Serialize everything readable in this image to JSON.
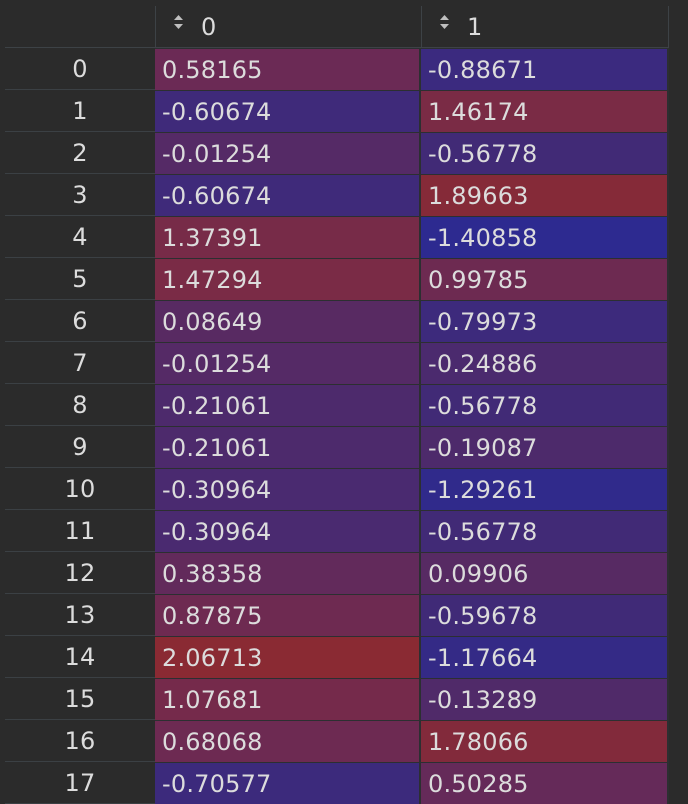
{
  "table": {
    "columns": [
      {
        "label": "0",
        "sort_icon": "sort-updown-icon"
      },
      {
        "label": "1",
        "sort_icon": "sort-updown-icon"
      }
    ],
    "rows": [
      {
        "index": "0",
        "values": [
          "0.58165",
          "-0.88671"
        ],
        "colors": [
          "#6b2a55",
          "#3b2a7f"
        ]
      },
      {
        "index": "1",
        "values": [
          "-0.60674",
          "1.46174"
        ],
        "colors": [
          "#3f2a7a",
          "#7a2b45"
        ]
      },
      {
        "index": "2",
        "values": [
          "-0.01254",
          "-0.56778"
        ],
        "colors": [
          "#552a66",
          "#412a76"
        ]
      },
      {
        "index": "3",
        "values": [
          "-0.60674",
          "1.89663"
        ],
        "colors": [
          "#3f2a7a",
          "#852a38"
        ]
      },
      {
        "index": "4",
        "values": [
          "1.37391",
          "-1.40858"
        ],
        "colors": [
          "#772b48",
          "#2d2a90"
        ]
      },
      {
        "index": "5",
        "values": [
          "1.47294",
          "0.99785"
        ],
        "colors": [
          "#7a2b46",
          "#6d2a51"
        ]
      },
      {
        "index": "6",
        "values": [
          "0.08649",
          "-0.79973"
        ],
        "colors": [
          "#582a62",
          "#3d2a7c"
        ]
      },
      {
        "index": "7",
        "values": [
          "-0.01254",
          "-0.24886"
        ],
        "colors": [
          "#552a66",
          "#4b2a6e"
        ]
      },
      {
        "index": "8",
        "values": [
          "-0.21061",
          "-0.56778"
        ],
        "colors": [
          "#4d2a6c",
          "#412a76"
        ]
      },
      {
        "index": "9",
        "values": [
          "-0.21061",
          "-0.19087"
        ],
        "colors": [
          "#4d2a6c",
          "#4d2a6b"
        ]
      },
      {
        "index": "10",
        "values": [
          "-0.30964",
          "-1.29261"
        ],
        "colors": [
          "#4a2a70",
          "#302a8b"
        ]
      },
      {
        "index": "11",
        "values": [
          "-0.30964",
          "-0.56778"
        ],
        "colors": [
          "#4a2a70",
          "#412a76"
        ]
      },
      {
        "index": "12",
        "values": [
          "0.38358",
          "0.09906"
        ],
        "colors": [
          "#622a5b",
          "#572a63"
        ]
      },
      {
        "index": "13",
        "values": [
          "0.87875",
          "-0.59678"
        ],
        "colors": [
          "#6e2a51",
          "#402a77"
        ]
      },
      {
        "index": "14",
        "values": [
          "2.06713",
          "-1.17664"
        ],
        "colors": [
          "#8a2a33",
          "#342a86"
        ]
      },
      {
        "index": "15",
        "values": [
          "1.07681",
          "-0.13289"
        ],
        "colors": [
          "#752a4b",
          "#502a69"
        ]
      },
      {
        "index": "16",
        "values": [
          "0.68068",
          "1.78066"
        ],
        "colors": [
          "#6d2a52",
          "#822a3b"
        ]
      },
      {
        "index": "17",
        "values": [
          "-0.70577",
          "0.50285"
        ],
        "colors": [
          "#3c2a7c",
          "#652a59"
        ]
      }
    ]
  }
}
